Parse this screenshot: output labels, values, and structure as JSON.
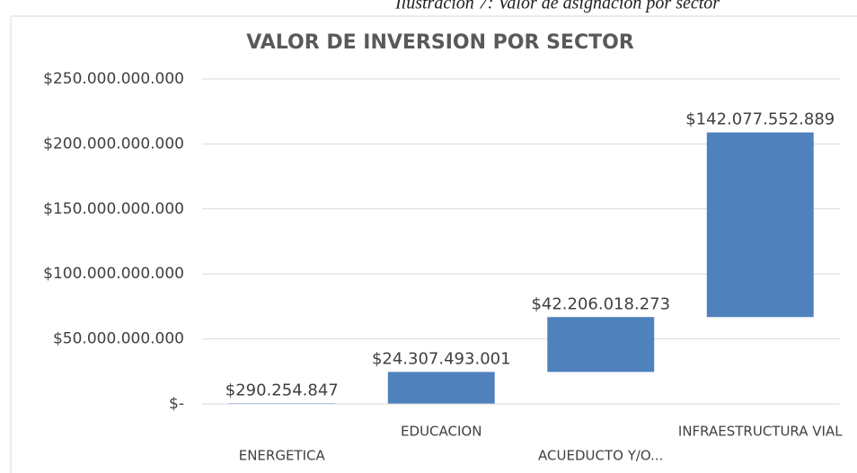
{
  "caption": "Ilustración 7: Valor de asignación por sector",
  "chart_data": {
    "type": "waterfall",
    "title": "VALOR DE INVERSION POR SECTOR",
    "categories": [
      "ENERGETICA",
      "EDUCACION",
      "ACUEDUCTO Y/O...",
      "INFRAESTRUCTURA VIAL"
    ],
    "values": [
      290254847,
      24307493001,
      42206018273,
      142077552889
    ],
    "value_labels": [
      "$290.254.847",
      "$24.307.493.001",
      "$42.206.018.273",
      "$142.077.552.889"
    ],
    "color": "#4f81bd",
    "ylim": [
      0,
      250000000000
    ],
    "yticks": [
      {
        "value": 0,
        "label": "$-"
      },
      {
        "value": 50000000000,
        "label": "$50.000.000.000"
      },
      {
        "value": 100000000000,
        "label": "$100.000.000.000"
      },
      {
        "value": 150000000000,
        "label": "$150.000.000.000"
      },
      {
        "value": 200000000000,
        "label": "$200.000.000.000"
      },
      {
        "value": 250000000000,
        "label": "$250.000.000.000"
      }
    ],
    "grid": true
  }
}
